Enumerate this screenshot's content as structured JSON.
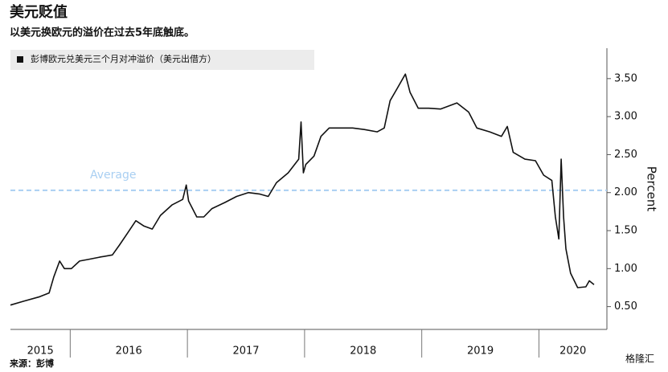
{
  "chart_data": {
    "type": "line",
    "title": "美元贬值",
    "subtitle": "以美元换欧元的溢价在过去5年底触底。",
    "y_label": "Percent",
    "source": "来源：彭博",
    "watermark": "格隆汇",
    "year_labels": [
      "2015",
      "2016",
      "2017",
      "2018",
      "2019",
      "2020"
    ],
    "xlim": [
      2015.49,
      2020.58
    ],
    "xticks": [
      2016,
      2017,
      2018,
      2019,
      2020
    ],
    "ylim": [
      0.2,
      3.9
    ],
    "yticks": [
      {
        "value": 0.5,
        "label": "0.50"
      },
      {
        "value": 1.0,
        "label": "1.00"
      },
      {
        "value": 1.5,
        "label": "1.50"
      },
      {
        "value": 2.0,
        "label": "2.00"
      },
      {
        "value": 2.5,
        "label": "2.50"
      },
      {
        "value": 3.0,
        "label": "3.00"
      },
      {
        "value": 3.5,
        "label": "3.50"
      }
    ],
    "average": {
      "label": "Average",
      "value": 2.03,
      "color": "#a9cff2"
    },
    "x": [
      2015.49,
      2015.6,
      2015.74,
      2015.82,
      2015.86,
      2015.91,
      2015.95,
      2016.01,
      2016.08,
      2016.15,
      2016.25,
      2016.36,
      2016.42,
      2016.49,
      2016.56,
      2016.63,
      2016.7,
      2016.77,
      2016.87,
      2016.96,
      2016.99,
      2017.01,
      2017.08,
      2017.14,
      2017.21,
      2017.32,
      2017.42,
      2017.52,
      2017.62,
      2017.69,
      2017.76,
      2017.86,
      2017.95,
      2017.97,
      2017.99,
      2018.01,
      2018.08,
      2018.14,
      2018.21,
      2018.31,
      2018.41,
      2018.51,
      2018.62,
      2018.68,
      2018.73,
      2018.79,
      2018.86,
      2018.9,
      2018.97,
      2019.06,
      2019.16,
      2019.3,
      2019.4,
      2019.47,
      2019.58,
      2019.68,
      2019.73,
      2019.78,
      2019.88,
      2019.97,
      2020.04,
      2020.11,
      2020.14,
      2020.17,
      2020.19,
      2020.21,
      2020.23,
      2020.27,
      2020.33,
      2020.4,
      2020.43,
      2020.47
    ],
    "series": [
      {
        "name": "彭博欧元兑美元三个月对冲溢价（美元出借方）",
        "color": "#111111",
        "values": [
          0.52,
          0.57,
          0.63,
          0.68,
          0.89,
          1.1,
          1.0,
          1.0,
          1.1,
          1.12,
          1.15,
          1.18,
          1.31,
          1.47,
          1.63,
          1.56,
          1.52,
          1.7,
          1.84,
          1.91,
          2.1,
          1.89,
          1.68,
          1.68,
          1.79,
          1.87,
          1.95,
          2.0,
          1.98,
          1.95,
          2.13,
          2.26,
          2.44,
          2.93,
          2.26,
          2.37,
          2.48,
          2.74,
          2.85,
          2.85,
          2.85,
          2.83,
          2.8,
          2.85,
          3.21,
          3.37,
          3.56,
          3.32,
          3.11,
          3.11,
          3.1,
          3.18,
          3.06,
          2.85,
          2.8,
          2.74,
          2.87,
          2.53,
          2.44,
          2.42,
          2.23,
          2.16,
          1.68,
          1.39,
          2.44,
          1.68,
          1.26,
          0.94,
          0.75,
          0.76,
          0.84,
          0.79
        ]
      }
    ]
  }
}
